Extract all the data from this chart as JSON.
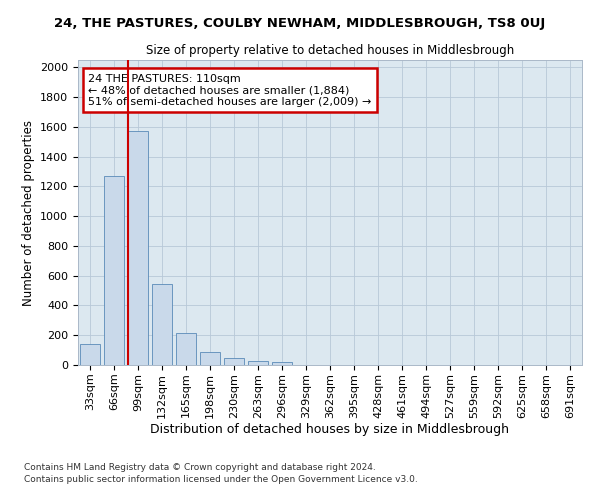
{
  "title": "24, THE PASTURES, COULBY NEWHAM, MIDDLESBROUGH, TS8 0UJ",
  "subtitle": "Size of property relative to detached houses in Middlesbrough",
  "xlabel": "Distribution of detached houses by size in Middlesbrough",
  "ylabel": "Number of detached properties",
  "footnote1": "Contains HM Land Registry data © Crown copyright and database right 2024.",
  "footnote2": "Contains public sector information licensed under the Open Government Licence v3.0.",
  "bar_color": "#c9d9ea",
  "bar_edge_color": "#5a8ab8",
  "annotation_box_color": "#cc0000",
  "vline_color": "#cc0000",
  "grid_color": "#b8c8d8",
  "bg_color": "#dce8f0",
  "fig_bg_color": "#ffffff",
  "categories": [
    "33sqm",
    "66sqm",
    "99sqm",
    "132sqm",
    "165sqm",
    "198sqm",
    "230sqm",
    "263sqm",
    "296sqm",
    "329sqm",
    "362sqm",
    "395sqm",
    "428sqm",
    "461sqm",
    "494sqm",
    "527sqm",
    "559sqm",
    "592sqm",
    "625sqm",
    "658sqm",
    "691sqm"
  ],
  "values": [
    140,
    1270,
    1570,
    545,
    215,
    90,
    48,
    27,
    20,
    0,
    0,
    0,
    0,
    0,
    0,
    0,
    0,
    0,
    0,
    0,
    0
  ],
  "ylim": [
    0,
    2050
  ],
  "yticks": [
    0,
    200,
    400,
    600,
    800,
    1000,
    1200,
    1400,
    1600,
    1800,
    2000
  ],
  "vline_bar_index": 2,
  "annotation_line1": "24 THE PASTURES: 110sqm",
  "annotation_line2": "← 48% of detached houses are smaller (1,884)",
  "annotation_line3": "51% of semi-detached houses are larger (2,009) →"
}
